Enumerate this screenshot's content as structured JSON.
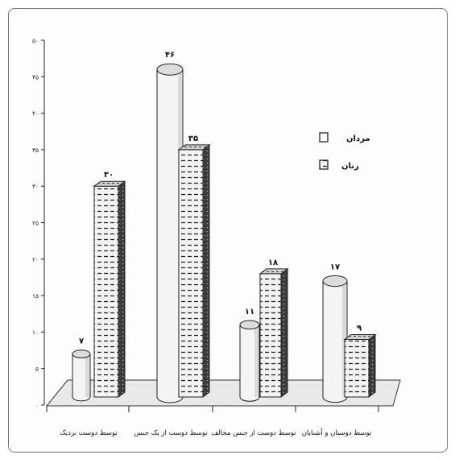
{
  "chart_data": {
    "type": "bar",
    "title": "",
    "xlabel": "",
    "ylabel": "",
    "ylim": [
      0,
      50
    ],
    "y_ticks": [
      "۰",
      "۵",
      "۱۰",
      "۱۵",
      "۲۰",
      "۲۵",
      "۳۰",
      "۳۵",
      "۴۰",
      "۴۵",
      "۵۰"
    ],
    "categories": [
      "توسط دوست نزدیک",
      "توسط دوست از یک جنس",
      "توسط دوست از جنس مخالف",
      "توسط دوستان و آشنایان"
    ],
    "series": [
      {
        "name": "مردان",
        "values": [
          7,
          46,
          11,
          17
        ],
        "value_labels": [
          "۷",
          "۴۶",
          "۱۱",
          "۱۷"
        ],
        "style": "cylinder-plain",
        "color": "#f2f2f2"
      },
      {
        "name": "زنان",
        "values": [
          30,
          35,
          18,
          9
        ],
        "value_labels": [
          "۳۰",
          "۳۵",
          "۱۸",
          "۹"
        ],
        "style": "box-dashed",
        "color": "#f2f2f2"
      }
    ],
    "legend": {
      "placement": "right"
    },
    "grid": false
  }
}
